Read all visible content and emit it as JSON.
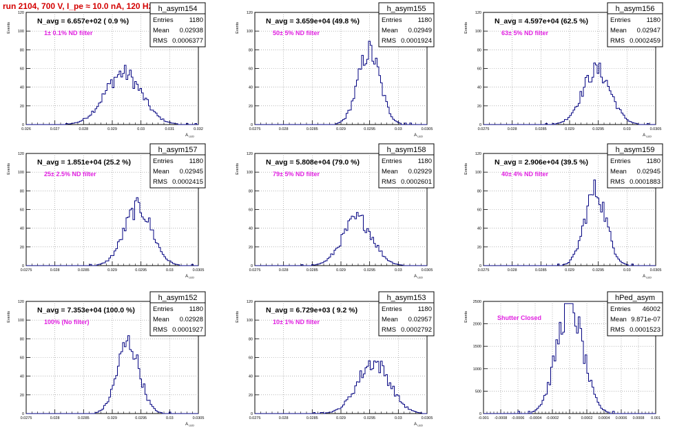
{
  "run_title": "run 2104,   700 V, I_pe ≈ 10.0 nA, 120 Hz",
  "colors": {
    "histogram_line": "#000080",
    "annotation": "#e020e0",
    "title": "#d40000",
    "grid": "#888888"
  },
  "chart_data": [
    {
      "type": "bar",
      "name": "h_asym154",
      "stats": {
        "entries_label": "Entries",
        "entries": "1180",
        "mean_label": "Mean",
        "mean": "0.02938",
        "rms_label": "RMS",
        "rms": "0.0006377"
      },
      "navg": "N_avg = 6.657e+02 ( 0.9 %)",
      "annotation": "1± 0.1% ND filter",
      "xlim": [
        0.026,
        0.032
      ],
      "ylim": [
        0,
        120
      ],
      "x_ticks": [
        "0.026",
        "0.027",
        "0.028",
        "0.029",
        "0.03",
        "0.031",
        "0.032"
      ],
      "y_ticks": [
        "0",
        "20",
        "40",
        "60",
        "80",
        "100",
        "120"
      ],
      "xlabel": "A_LED",
      "ylabel": "Events",
      "histogram": {
        "mean": 0.02938,
        "sigma": 0.00064,
        "peak": 55
      }
    },
    {
      "type": "bar",
      "name": "h_asym155",
      "stats": {
        "entries_label": "Entries",
        "entries": "1180",
        "mean_label": "Mean",
        "mean": "0.02949",
        "rms_label": "RMS",
        "rms": "0.0001924"
      },
      "navg": "N_avg = 3.659e+04 (49.8 %)",
      "annotation": "50± 5% ND filter",
      "xlim": [
        0.0275,
        0.0305
      ],
      "ylim": [
        0,
        120
      ],
      "x_ticks": [
        "0.0275",
        "0.028",
        "0.0285",
        "0.029",
        "0.0295",
        "0.03",
        "0.0305"
      ],
      "y_ticks": [
        "0",
        "20",
        "40",
        "60",
        "80",
        "100",
        "120"
      ],
      "xlabel": "A_LED",
      "ylabel": "Events",
      "histogram": {
        "mean": 0.02949,
        "sigma": 0.000192,
        "peak": 78
      }
    },
    {
      "type": "bar",
      "name": "h_asym156",
      "stats": {
        "entries_label": "Entries",
        "entries": "1180",
        "mean_label": "Mean",
        "mean": "0.02947",
        "rms_label": "RMS",
        "rms": "0.0002459"
      },
      "navg": "N_avg = 4.597e+04 (62.5 %)",
      "annotation": "63± 5% ND filter",
      "xlim": [
        0.0275,
        0.0305
      ],
      "ylim": [
        0,
        120
      ],
      "x_ticks": [
        "0.0275",
        "0.028",
        "0.0285",
        "0.029",
        "0.0295",
        "0.03",
        "0.0305"
      ],
      "y_ticks": [
        "0",
        "20",
        "40",
        "60",
        "80",
        "100",
        "120"
      ],
      "xlabel": "A_LED",
      "ylabel": "Events",
      "histogram": {
        "mean": 0.02947,
        "sigma": 0.000246,
        "peak": 58
      }
    },
    {
      "type": "bar",
      "name": "h_asym157",
      "stats": {
        "entries_label": "Entries",
        "entries": "1180",
        "mean_label": "Mean",
        "mean": "0.02945",
        "rms_label": "RMS",
        "rms": "0.0002415"
      },
      "navg": "N_avg = 1.851e+04 (25.2 %)",
      "annotation": "25± 2.5% ND filter",
      "xlim": [
        0.0275,
        0.0305
      ],
      "ylim": [
        0,
        120
      ],
      "x_ticks": [
        "0.0275",
        "0.028",
        "0.0285",
        "0.029",
        "0.0295",
        "0.03",
        "0.0305"
      ],
      "y_ticks": [
        "0",
        "20",
        "40",
        "60",
        "80",
        "100",
        "120"
      ],
      "xlabel": "A_LED",
      "ylabel": "Events",
      "histogram": {
        "mean": 0.02945,
        "sigma": 0.000242,
        "peak": 62
      }
    },
    {
      "type": "bar",
      "name": "h_asym158",
      "stats": {
        "entries_label": "Entries",
        "entries": "1180",
        "mean_label": "Mean",
        "mean": "0.02929",
        "rms_label": "RMS",
        "rms": "0.0002601"
      },
      "navg": "N_avg = 5.808e+04 (79.0 %)",
      "annotation": "79± 5% ND filter",
      "xlim": [
        0.0275,
        0.0305
      ],
      "ylim": [
        0,
        120
      ],
      "x_ticks": [
        "0.0275",
        "0.028",
        "0.0285",
        "0.029",
        "0.0295",
        "0.03",
        "0.0305"
      ],
      "y_ticks": [
        "0",
        "20",
        "40",
        "60",
        "80",
        "100",
        "120"
      ],
      "xlabel": "A_LED",
      "ylabel": "Events",
      "histogram": {
        "mean": 0.02929,
        "sigma": 0.00026,
        "peak": 50
      }
    },
    {
      "type": "bar",
      "name": "h_asym159",
      "stats": {
        "entries_label": "Entries",
        "entries": "1180",
        "mean_label": "Mean",
        "mean": "0.02945",
        "rms_label": "RMS",
        "rms": "0.0001883"
      },
      "navg": "N_avg = 2.906e+04 (39.5 %)",
      "annotation": "40± 4% ND filter",
      "xlim": [
        0.0275,
        0.0305
      ],
      "ylim": [
        0,
        120
      ],
      "x_ticks": [
        "0.0275",
        "0.028",
        "0.0285",
        "0.029",
        "0.0295",
        "0.03",
        "0.0305"
      ],
      "y_ticks": [
        "0",
        "20",
        "40",
        "60",
        "80",
        "100",
        "120"
      ],
      "xlabel": "A_LED",
      "ylabel": "Events",
      "histogram": {
        "mean": 0.02945,
        "sigma": 0.000188,
        "peak": 80
      }
    },
    {
      "type": "bar",
      "name": "h_asym152",
      "stats": {
        "entries_label": "Entries",
        "entries": "1180",
        "mean_label": "Mean",
        "mean": "0.02928",
        "rms_label": "RMS",
        "rms": "0.0001927"
      },
      "navg": "N_avg = 7.353e+04 (100.0 %)",
      "annotation": "100% (No filter)",
      "xlim": [
        0.0275,
        0.0305
      ],
      "ylim": [
        0,
        120
      ],
      "x_ticks": [
        "0.0275",
        "0.028",
        "0.0285",
        "0.029",
        "0.0295",
        "0.03",
        "0.0305"
      ],
      "y_ticks": [
        "0",
        "20",
        "40",
        "60",
        "80",
        "100",
        "120"
      ],
      "xlabel": "A_LED",
      "ylabel": "Events",
      "histogram": {
        "mean": 0.02928,
        "sigma": 0.000193,
        "peak": 76
      }
    },
    {
      "type": "bar",
      "name": "h_asym153",
      "stats": {
        "entries_label": "Entries",
        "entries": "1180",
        "mean_label": "Mean",
        "mean": "0.02957",
        "rms_label": "RMS",
        "rms": "0.0002792"
      },
      "navg": "N_avg = 6.729e+03 ( 9.2 %)",
      "annotation": "10± 1% ND filter",
      "xlim": [
        0.0275,
        0.0305
      ],
      "ylim": [
        0,
        120
      ],
      "x_ticks": [
        "0.0275",
        "0.028",
        "0.0285",
        "0.029",
        "0.0295",
        "0.03",
        "0.0305"
      ],
      "y_ticks": [
        "0",
        "20",
        "40",
        "60",
        "80",
        "100",
        "120"
      ],
      "xlabel": "A_LED",
      "ylabel": "Events",
      "histogram": {
        "mean": 0.02957,
        "sigma": 0.00028,
        "peak": 55
      }
    },
    {
      "type": "bar",
      "name": "hPed_asym",
      "stats": {
        "entries_label": "Entries",
        "entries": "46002",
        "mean_label": "Mean",
        "mean": "9.871e-07",
        "rms_label": "RMS",
        "rms": "0.0001523"
      },
      "navg": "",
      "annotation": "Shutter Closed",
      "xlim": [
        -0.001,
        0.001
      ],
      "ylim": [
        0,
        2500
      ],
      "x_ticks": [
        "-0.001",
        "-0.0008",
        "-0.0006",
        "-0.0004",
        "-0.0002",
        "0",
        "0.0002",
        "0.0004",
        "0.0006",
        "0.0008",
        "0.001"
      ],
      "y_ticks": [
        "0",
        "500",
        "1000",
        "1500",
        "2000",
        "2500"
      ],
      "xlabel": "",
      "ylabel": "Events",
      "histogram": {
        "mean": 1e-06,
        "sigma": 0.000152,
        "peak": 2420
      }
    }
  ]
}
